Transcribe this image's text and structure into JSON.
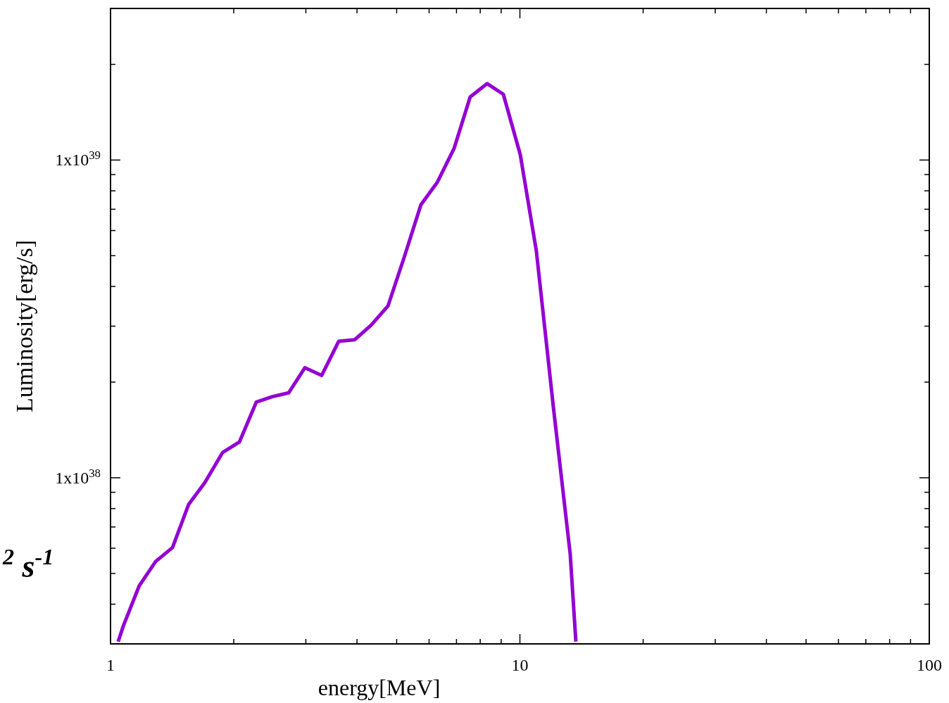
{
  "chart_data": {
    "type": "line",
    "xlabel": "energy[MeV]",
    "ylabel": "Luminosity[erg/s]",
    "log": "xy",
    "grid": false,
    "marker": "none",
    "line_style": "solid",
    "xlim": [
      1,
      100
    ],
    "ylim": [
      3e+37,
      3e+39
    ],
    "xticks": [
      1,
      {
        "value": 2,
        "label": null
      },
      {
        "value": 3,
        "label": null
      },
      {
        "value": 4,
        "label": null
      },
      {
        "value": 5,
        "label": null
      },
      {
        "value": 6,
        "label": null
      },
      {
        "value": 7,
        "label": null
      },
      {
        "value": 8,
        "label": null
      },
      {
        "value": 9,
        "label": null
      },
      10,
      {
        "value": 20,
        "label": null
      },
      {
        "value": 30,
        "label": null
      },
      {
        "value": 40,
        "label": null
      },
      {
        "value": 50,
        "label": null
      },
      {
        "value": 60,
        "label": null
      },
      {
        "value": 70,
        "label": null
      },
      {
        "value": 80,
        "label": null
      },
      {
        "value": 90,
        "label": null
      },
      100
    ],
    "yticks": [
      {
        "value": 4e+37,
        "label": null
      },
      {
        "value": 5e+37,
        "label": null
      },
      {
        "value": 6e+37,
        "label": null
      },
      {
        "value": 7e+37,
        "label": null
      },
      {
        "value": 8e+37,
        "label": null
      },
      {
        "value": 9e+37,
        "label": null
      },
      {
        "value": 1e+38,
        "label": "1x10$^{38}$"
      },
      {
        "value": 2e+38,
        "label": null
      },
      {
        "value": 3e+38,
        "label": null
      },
      {
        "value": 4e+38,
        "label": null
      },
      {
        "value": 5e+38,
        "label": null
      },
      {
        "value": 6e+38,
        "label": null
      },
      {
        "value": 7e+38,
        "label": null
      },
      {
        "value": 8e+38,
        "label": null
      },
      {
        "value": 9e+38,
        "label": null
      },
      {
        "value": 1e+39,
        "label": "1x10$^{39}$"
      },
      {
        "value": 2e+39,
        "label": null
      }
    ],
    "annotations": [
      "$^{2}$ s$^{-1}$"
    ],
    "series": [
      {
        "color": "#9400d3",
        "x": [
          1.044,
          1.074,
          1.176,
          1.289,
          1.417,
          1.552,
          1.7,
          1.877,
          2.064,
          2.27,
          2.486,
          2.723,
          2.983,
          3.28,
          3.61,
          3.95,
          4.33,
          4.76,
          5.21,
          5.73,
          6.28,
          6.91,
          7.56,
          8.32,
          9.11,
          10.02,
          10.97,
          12.07,
          13.27,
          13.7
        ],
        "values": [
          3.05e+37,
          3.41e+37,
          4.58e+37,
          5.45e+37,
          6.03e+37,
          8.25e+37,
          9.66e+37,
          1.2e+38,
          1.295e+38,
          1.73e+38,
          1.8e+38,
          1.85e+38,
          2.22e+38,
          2.1e+38,
          2.69e+38,
          2.72e+38,
          3.02e+38,
          3.47e+38,
          4.92e+38,
          7.23e+38,
          8.5e+38,
          1.09e+39,
          1.58e+39,
          1.74e+39,
          1.61e+39,
          1.04e+39,
          5.17e+38,
          1.67e+38,
          5.75e+37,
          3.05e+37
        ]
      }
    ]
  }
}
